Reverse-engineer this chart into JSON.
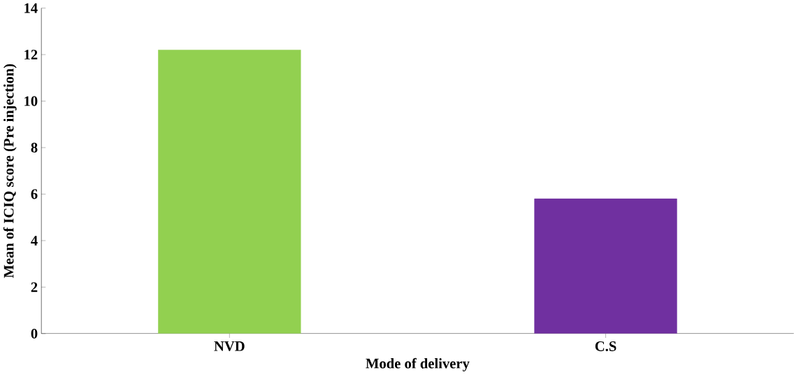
{
  "chart_data": {
    "type": "bar",
    "xlabel": "Mode of delivery",
    "ylabel": "Mean of ICIQ score (Pre injection)",
    "categories": [
      "NVD",
      "C.S"
    ],
    "values": [
      12.2,
      5.8
    ],
    "colors": [
      "#92d050",
      "#7030a0"
    ],
    "ylim": [
      0,
      14
    ],
    "yticks": [
      0,
      2,
      4,
      6,
      8,
      10,
      12,
      14
    ],
    "grid": false
  }
}
